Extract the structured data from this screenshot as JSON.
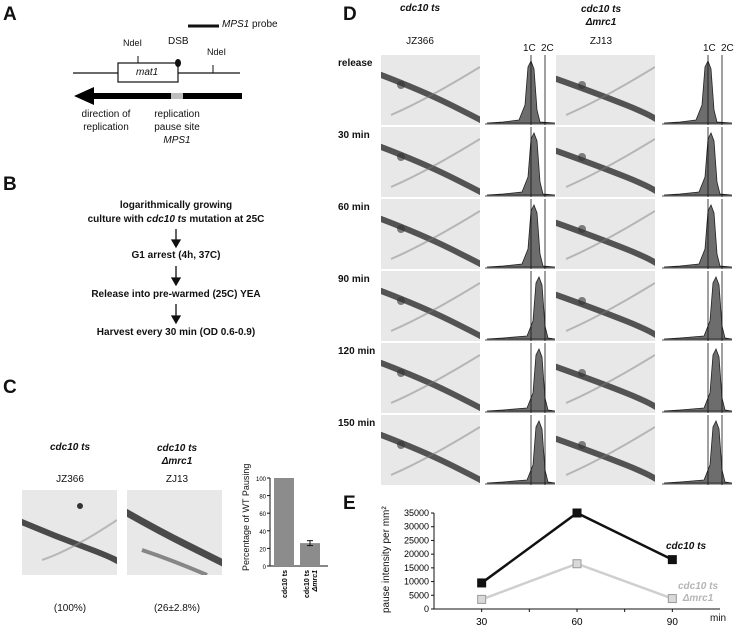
{
  "panel_a": {
    "label": "A",
    "probe_label": "MPS1",
    "probe_suffix": "probe",
    "ndel_left": "NdeI",
    "ndel_right": "NdeI",
    "dsb": "DSB",
    "gene": "mat1",
    "direction_line1": "direction of",
    "direction_line2": "replication",
    "pause_line1": "replication",
    "pause_line2": "pause site",
    "pause_line3": "MPS1"
  },
  "panel_b": {
    "label": "B",
    "step1_line1": "logarithmically growing",
    "step1_line2_pre": "culture with ",
    "step1_line2_italic": "cdc10 ts",
    "step1_line2_post": " mutation at 25C",
    "step2": "G1 arrest (4h, 37C)",
    "step3": "Release into pre-warmed (25C) YEA",
    "step4": "Harvest every 30 min (OD 0.6-0.9)"
  },
  "panel_c": {
    "label": "C",
    "strain1_name": "cdc10 ts",
    "strain1_id": "JZ366",
    "strain1_pct": "(100%)",
    "strain2_name_line1": "cdc10 ts",
    "strain2_name_line2": "Δmrc1",
    "strain2_id": "ZJ13",
    "strain2_pct": "(26±2.8%)",
    "bar_ylabel": "Percentage of WT Pausing",
    "bar_yticks": [
      "100",
      "80",
      "60",
      "40",
      "20",
      "0"
    ],
    "bar_xlabel1": "cdc10 ts",
    "bar_xlabel2_line1": "cdc10 ts",
    "bar_xlabel2_line2": "Δmrc1"
  },
  "panel_d": {
    "label": "D",
    "col1_name": "cdc10 ts",
    "col1_id": "JZ366",
    "col2_name_line1": "cdc10 ts",
    "col2_name_line2": "Δmrc1",
    "col2_id": "ZJ13",
    "flow_1c": "1C",
    "flow_2c": "2C",
    "rows": [
      "release",
      "30 min",
      "60 min",
      "90 min",
      "120 min",
      "150 min"
    ]
  },
  "panel_e": {
    "label": "E",
    "ylabel": "pause intensity per mm²",
    "xunit": "min",
    "series1_label": "cdc10 ts",
    "series2_label_line1": "cdc10 ts",
    "series2_label_line2": "Δmrc1"
  },
  "chart_data": [
    {
      "type": "bar",
      "categories": [
        "cdc10 ts",
        "cdc10 ts Δmrc1"
      ],
      "values": [
        100,
        26
      ],
      "error": [
        0,
        2.8
      ],
      "ylabel": "Percentage of WT Pausing",
      "ylim": [
        0,
        100
      ],
      "colors": [
        "#8c8c8c",
        "#8c8c8c"
      ]
    },
    {
      "type": "line",
      "x": [
        30,
        60,
        90
      ],
      "xticks": [
        "30",
        "60",
        "90"
      ],
      "xunit": "min",
      "ylabel": "pause intensity per mm²",
      "ylim": [
        0,
        35000
      ],
      "yticks": [
        "35000",
        "30000",
        "25000",
        "20000",
        "15000",
        "10000",
        "5000",
        "0"
      ],
      "series": [
        {
          "name": "cdc10 ts",
          "values": [
            9500,
            35000,
            18000
          ],
          "color": "#111111"
        },
        {
          "name": "cdc10 ts Δmrc1",
          "values": [
            3500,
            16500,
            3800
          ],
          "color": "#cfcfcf"
        }
      ]
    }
  ]
}
